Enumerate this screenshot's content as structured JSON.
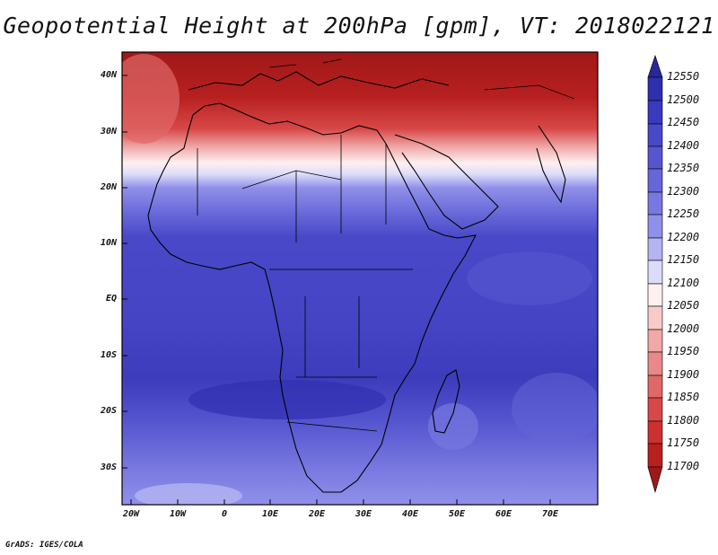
{
  "title": "Geopotential Height at 200hPa [gpm], VT: 2018022121",
  "footer": "GrADS: IGES/COLA",
  "map": {
    "lat_labels": [
      "40N",
      "30N",
      "20N",
      "10N",
      "EQ",
      "10S",
      "20S",
      "30S"
    ],
    "lon_labels": [
      "20W",
      "10W",
      "0",
      "10E",
      "20E",
      "30E",
      "40E",
      "50E",
      "60E",
      "70E"
    ]
  },
  "colorbar": {
    "levels": [
      "12550",
      "12500",
      "12450",
      "12400",
      "12350",
      "12300",
      "12250",
      "12200",
      "12150",
      "12100",
      "12050",
      "12000",
      "11950",
      "11900",
      "11850",
      "11800",
      "11750",
      "11700"
    ],
    "colors": [
      "#28289a",
      "#2f2fb0",
      "#3a3ac0",
      "#4848c8",
      "#5656d0",
      "#6666d8",
      "#7878e0",
      "#9090ea",
      "#b4b4f2",
      "#dcdcfa",
      "#fff0f0",
      "#f8caca",
      "#f0a8a8",
      "#e88888",
      "#e06868",
      "#d84848",
      "#cc3030",
      "#b82020",
      "#a01818"
    ]
  }
}
